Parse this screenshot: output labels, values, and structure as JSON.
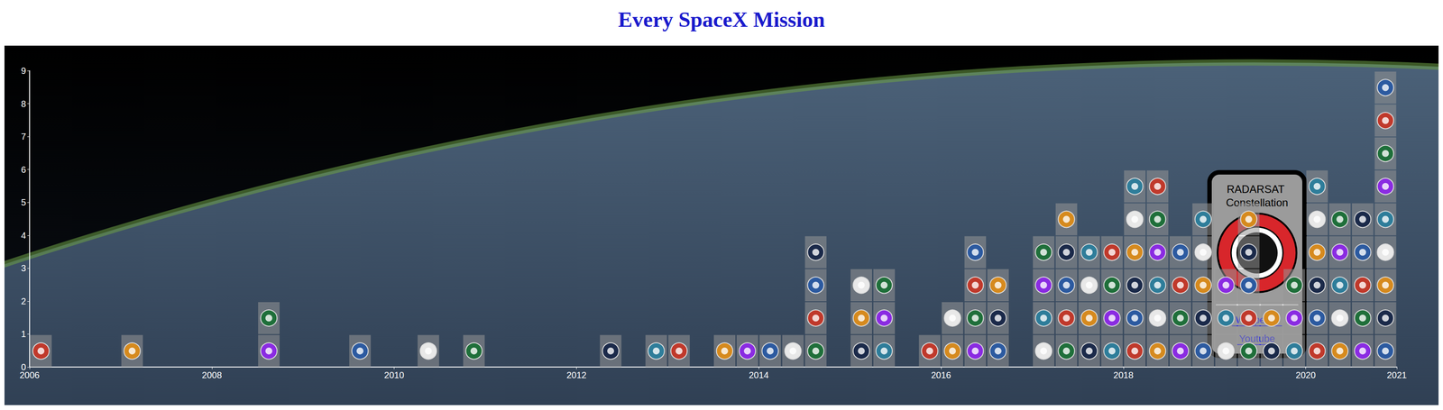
{
  "chart_data": {
    "type": "bar",
    "title": "Every SpaceX Mission",
    "x": [
      2006.125,
      2007.125,
      2008.625,
      2009.625,
      2010.375,
      2010.875,
      2012.375,
      2012.875,
      2013.125,
      2013.625,
      2013.875,
      2014.125,
      2014.375,
      2014.625,
      2015.125,
      2015.375,
      2015.875,
      2016.125,
      2016.375,
      2016.625,
      2017.125,
      2017.375,
      2017.625,
      2017.875,
      2018.125,
      2018.375,
      2018.625,
      2018.875,
      2019.125,
      2019.375,
      2019.625,
      2019.875,
      2020.125,
      2020.375,
      2020.625,
      2020.875
    ],
    "values": [
      1,
      1,
      2,
      1,
      1,
      1,
      1,
      1,
      1,
      1,
      1,
      1,
      1,
      4,
      3,
      3,
      1,
      2,
      4,
      3,
      4,
      5,
      4,
      4,
      6,
      6,
      4,
      5,
      3,
      5,
      2,
      3,
      6,
      5,
      5,
      9
    ],
    "xlim": [
      2006,
      2021
    ],
    "ylim": [
      0,
      9
    ],
    "xticks": [
      2006,
      2008,
      2010,
      2012,
      2014,
      2016,
      2018,
      2020
    ],
    "yticks": [
      0,
      1,
      2,
      3,
      4,
      5,
      6,
      7,
      8,
      9
    ],
    "grid": false,
    "annotations": {
      "tooltip": {
        "title": "RADARSAT Constellation",
        "links": [
          "Wikipedia",
          "Youtube"
        ]
      }
    }
  }
}
